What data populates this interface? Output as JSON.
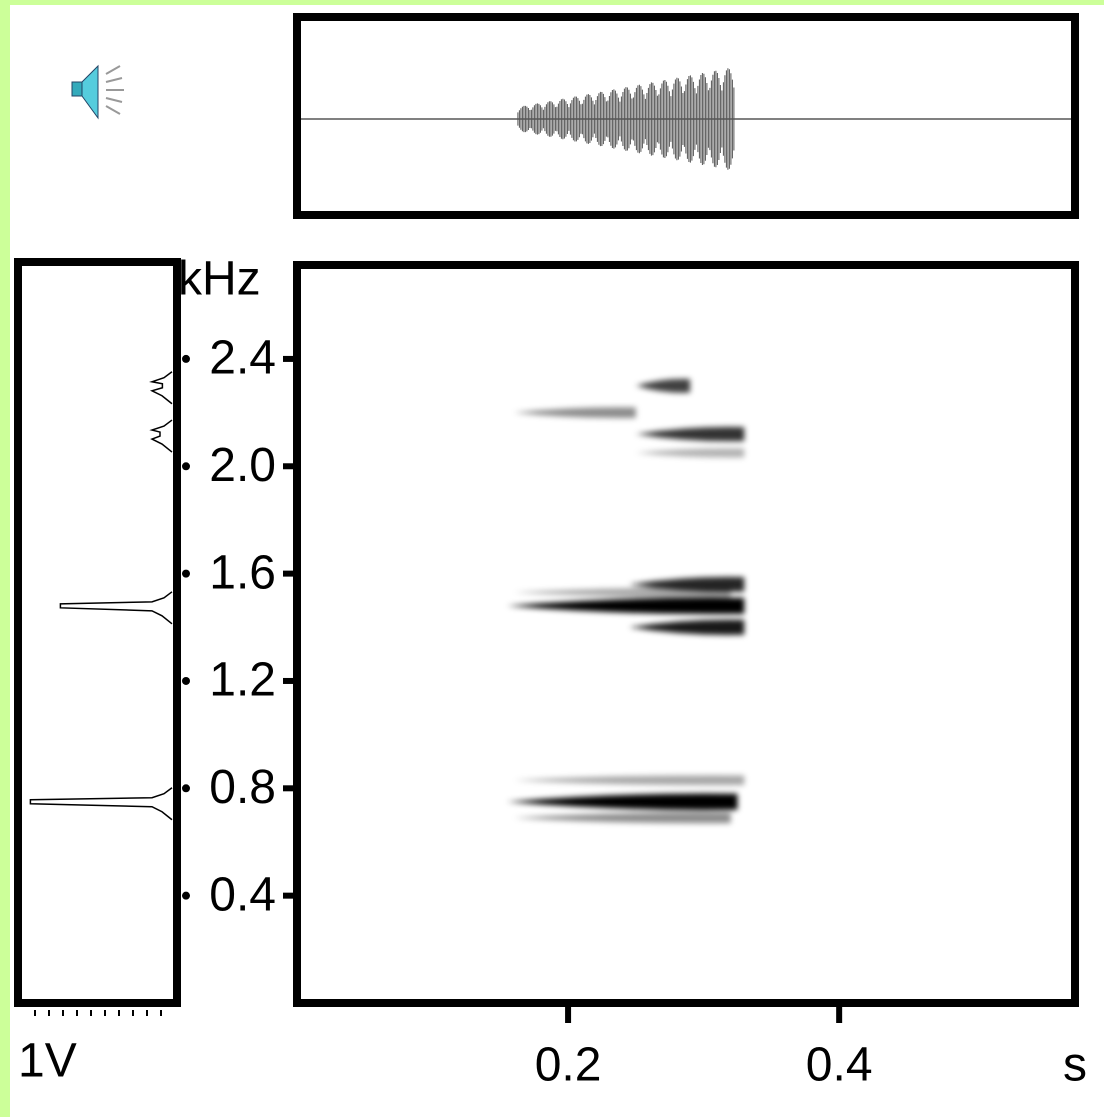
{
  "chart_data": {
    "type": "spectrogram",
    "y_label": "kHz",
    "x_label": "s",
    "spectrum_label": "1V",
    "xlim": [
      0,
      0.574
    ],
    "xticks": [
      0.2,
      0.4
    ],
    "ylim": [
      0,
      2.75
    ],
    "yticks": [
      2.4,
      {
        "value": 2,
        "label": "2.0"
      },
      1.6,
      1.2,
      0.8,
      0.4
    ],
    "color": "#000000",
    "waveform": {
      "start": 0.163,
      "end": 0.323
    },
    "bands": [
      {
        "start": 0.155,
        "end": 0.325,
        "freq": 0.75,
        "level": 1
      },
      {
        "start": 0.16,
        "end": 0.32,
        "freq": 0.69,
        "level": 0.45
      },
      {
        "start": 0.16,
        "end": 0.33,
        "freq": 0.83,
        "level": 0.35
      },
      {
        "start": 0.155,
        "end": 0.33,
        "freq": 1.48,
        "level": 1
      },
      {
        "start": 0.245,
        "end": 0.33,
        "freq": 1.4,
        "level": 0.9
      },
      {
        "start": 0.245,
        "end": 0.33,
        "freq": 1.56,
        "level": 0.85
      },
      {
        "start": 0.16,
        "end": 0.32,
        "freq": 1.53,
        "level": 0.35
      },
      {
        "start": 0.16,
        "end": 0.25,
        "freq": 2.2,
        "level": 0.45
      },
      {
        "start": 0.25,
        "end": 0.33,
        "freq": 2.12,
        "level": 0.8
      },
      {
        "start": 0.25,
        "end": 0.29,
        "freq": 2.3,
        "level": 0.75
      },
      {
        "start": 0.25,
        "end": 0.33,
        "freq": 2.05,
        "level": 0.3
      }
    ],
    "spectrum": {
      "xlim": [
        0,
        1.25
      ],
      "peaks": [
        {
          "freq": 0.75,
          "amplitude": 1.18
        },
        {
          "freq": 1.48,
          "amplitude": 0.93
        },
        {
          "freq": 2.12,
          "amplitude": 0.1
        },
        {
          "freq": 2.3,
          "amplitude": 0.08
        }
      ]
    }
  }
}
